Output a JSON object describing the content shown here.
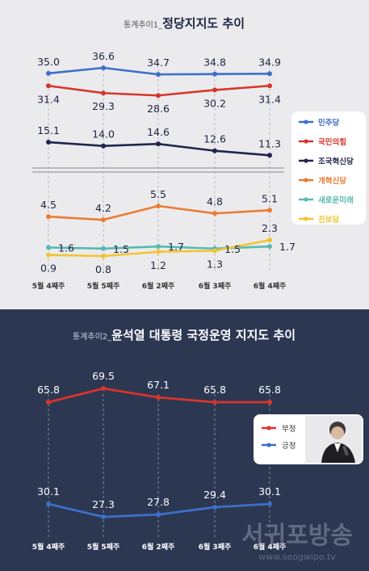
{
  "chart_data": [
    {
      "type": "line",
      "title_prefix": "통계추이1_",
      "title": "정당지지도 추이",
      "categories": [
        "5월 4째주",
        "5월 5째주",
        "6월 2째주",
        "6월 3째주",
        "6월 4째주"
      ],
      "series": [
        {
          "name": "민주당",
          "color": "#3d6fc9",
          "values": [
            35.0,
            36.6,
            34.7,
            34.8,
            34.9
          ],
          "labels": [
            "35.0",
            "36.6",
            "34.7",
            "34.8",
            "34.9"
          ]
        },
        {
          "name": "국민의힘",
          "color": "#d7352b",
          "values": [
            31.4,
            29.3,
            28.6,
            30.2,
            31.4
          ],
          "labels": [
            "31.4",
            "29.3",
            "28.6",
            "30.2",
            "31.4"
          ]
        },
        {
          "name": "조국혁신당",
          "color": "#22254f",
          "values": [
            15.1,
            14.0,
            14.6,
            12.6,
            11.3
          ],
          "labels": [
            "15.1",
            "14.0",
            "14.6",
            "12.6",
            "11.3"
          ]
        },
        {
          "name": "개혁신당",
          "color": "#ec7b31",
          "values": [
            4.5,
            4.2,
            5.5,
            4.8,
            5.1
          ],
          "labels": [
            "4.5",
            "4.2",
            "5.5",
            "4.8",
            "5.1"
          ]
        },
        {
          "name": "새로운미래",
          "color": "#58b9b2",
          "values": [
            1.6,
            1.5,
            1.7,
            1.5,
            1.7
          ],
          "labels": [
            "1.6",
            "1.5",
            "1.7",
            "1.5",
            "1.7"
          ]
        },
        {
          "name": "진보당",
          "color": "#f2c530",
          "values": [
            0.9,
            0.8,
            1.2,
            1.3,
            2.3
          ],
          "labels": [
            "0.9",
            "0.8",
            "1.2",
            "1.3",
            "2.3"
          ]
        }
      ],
      "axis_break": true,
      "legend_position": "right"
    },
    {
      "type": "line",
      "title_prefix": "통계추이2_",
      "title": "윤석열 대통령 국정운영 지지도 추이",
      "categories": [
        "5월 4째주",
        "5월 5째주",
        "6월 2째주",
        "6월 3째주",
        "6월 4째주"
      ],
      "series": [
        {
          "name": "부정",
          "color": "#d7352b",
          "values": [
            65.8,
            69.5,
            67.1,
            65.8,
            65.8
          ],
          "labels": [
            "65.8",
            "69.5",
            "67.1",
            "65.8",
            "65.8"
          ]
        },
        {
          "name": "긍정",
          "color": "#3d6fc9",
          "values": [
            30.1,
            27.3,
            27.8,
            29.4,
            30.1
          ],
          "labels": [
            "30.1",
            "27.3",
            "27.8",
            "29.4",
            "30.1"
          ]
        }
      ],
      "legend_position": "right"
    }
  ],
  "watermark": {
    "name": "서귀포방송",
    "url": "www.seogwipo.tv"
  },
  "colors": {
    "top_bg": "#ebebee",
    "bottom_bg": "#2c3752",
    "grid": "#b9b9bd"
  }
}
